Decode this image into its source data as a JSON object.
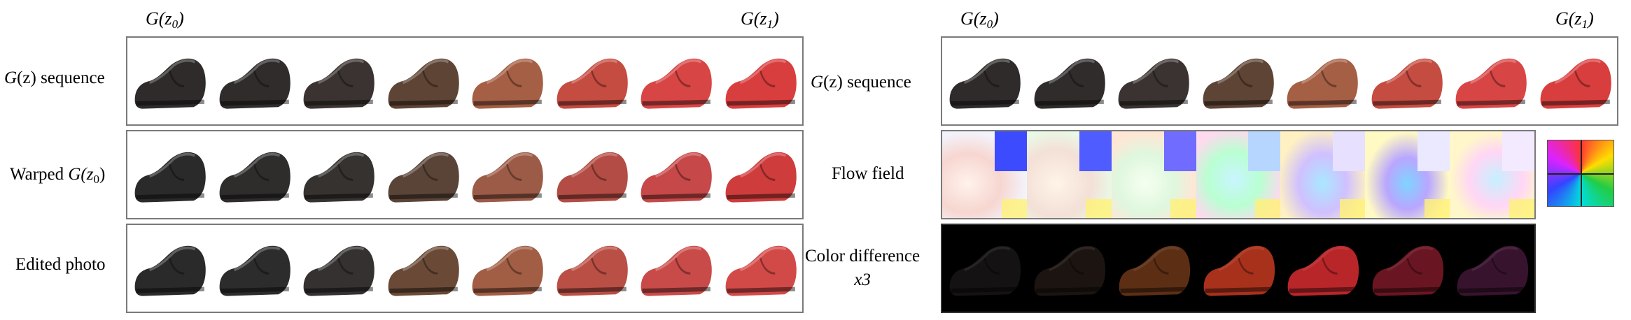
{
  "headers": {
    "left_start": "G(z",
    "left_start_sub": "0",
    "left_end": "G(z",
    "left_end_sub": "1",
    "right_start": "G(z",
    "right_start_sub": "0",
    "right_end": "G(z",
    "right_end_sub": "1",
    "close_paren": ")"
  },
  "left_rows": [
    {
      "label_pre": "G",
      "label_mid": "(z)",
      "label_post": " sequence"
    },
    {
      "label_pre": "Warped ",
      "label_mid": "G(z",
      "label_sub": "0",
      "label_post": ")"
    },
    {
      "label_pre": "Edited photo"
    }
  ],
  "right_rows": [
    {
      "label_pre": "G",
      "label_mid": "(z)",
      "label_post": " sequence"
    },
    {
      "label_pre": "Flow field"
    },
    {
      "label_line1": "Color difference",
      "label_line2": "x3"
    }
  ],
  "colors": {
    "sequence": [
      "#2e2b2a",
      "#2f2c2b",
      "#3a3331",
      "#5e4434",
      "#a55f45",
      "#c54c41",
      "#d84545",
      "#d93e3e"
    ],
    "warped": [
      "#2b2a2a",
      "#2e2d2c",
      "#353230",
      "#5a4438",
      "#9c5b47",
      "#b34c44",
      "#c64848",
      "#cf3c3c"
    ],
    "edited": [
      "#2a2a2b",
      "#2d2c2c",
      "#343130",
      "#6a4a37",
      "#a15e44",
      "#ba4f45",
      "#c94b49",
      "#d24a48"
    ],
    "colordiff": [
      "#141212",
      "#1c1411",
      "#5c2f15",
      "#a8311c",
      "#b8262a",
      "#6a1622",
      "#38132e"
    ]
  }
}
